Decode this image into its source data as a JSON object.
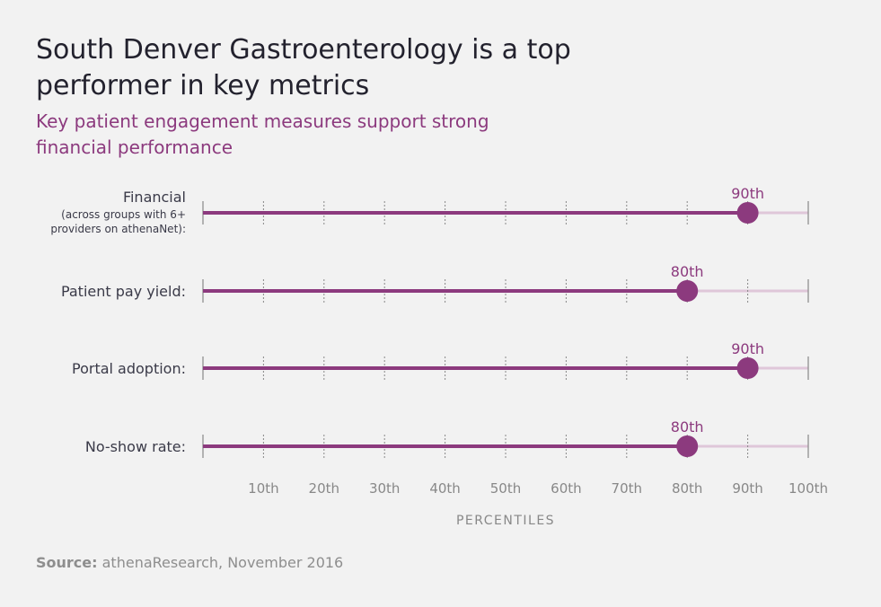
{
  "title": "South Denver Gastroenterology is a top performer in key metrics",
  "subtitle": "Key patient engagement measures support strong financial performance",
  "source": {
    "label": "Source:",
    "text": "athenaResearch, November 2016"
  },
  "colors": {
    "accent": "#8c3a7e",
    "track": "#dfc7d9",
    "axis": "#888888",
    "text": "#3a3a48"
  },
  "chart_data": {
    "type": "dot-bar",
    "xlabel": "PERCENTILES",
    "xlim": [
      0,
      100
    ],
    "ticks": [
      10,
      20,
      30,
      40,
      50,
      60,
      70,
      80,
      90,
      100
    ],
    "tick_labels": [
      "10th",
      "20th",
      "30th",
      "40th",
      "50th",
      "60th",
      "70th",
      "80th",
      "90th",
      "100th"
    ],
    "grid": true,
    "rows": [
      {
        "label": "Financial",
        "sublabel_lines": [
          "(across groups with 6+",
          "providers on athenaNet):"
        ],
        "value": 90,
        "value_label": "90th"
      },
      {
        "label": "Patient pay yield:",
        "sublabel_lines": [],
        "value": 80,
        "value_label": "80th"
      },
      {
        "label": "Portal adoption:",
        "sublabel_lines": [],
        "value": 90,
        "value_label": "90th"
      },
      {
        "label": "No-show rate:",
        "sublabel_lines": [],
        "value": 80,
        "value_label": "80th"
      }
    ]
  }
}
